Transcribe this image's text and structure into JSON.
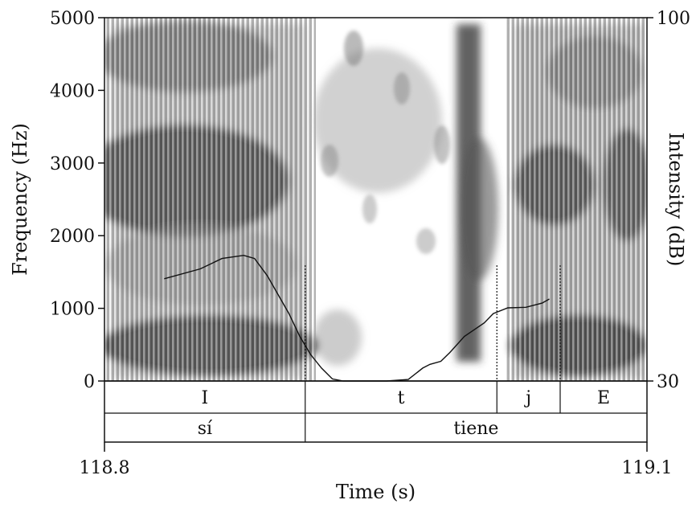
{
  "chart_data": {
    "type": "spectrogram",
    "xlabel": "Time (s)",
    "ylabel": "Frequency (Hz)",
    "y2label": "Intensity (dB)",
    "xlim": [
      118.8,
      119.1
    ],
    "x_tick_labels": [
      "118.8",
      "119.1"
    ],
    "ylim": [
      0,
      5000
    ],
    "y_ticks": [
      0,
      1000,
      2000,
      3000,
      4000,
      5000
    ],
    "y_tick_labels": [
      "0",
      "1000",
      "2000",
      "3000",
      "4000",
      "5000"
    ],
    "y2lim": [
      30,
      100
    ],
    "y2_ticks": [
      30,
      100
    ],
    "y2_tick_labels": [
      "30",
      "100"
    ],
    "intensity_contour": {
      "x": [
        118.833,
        118.853,
        118.865,
        118.877,
        118.883,
        118.89,
        118.902,
        118.908,
        118.914,
        118.92,
        118.926,
        118.932,
        118.938,
        118.944,
        118.956,
        118.968,
        118.976,
        118.98,
        118.986,
        118.991,
        118.999,
        119.01,
        119.015,
        119.023,
        119.033,
        119.042,
        119.046
      ],
      "y": [
        49.7,
        51.6,
        53.6,
        54.2,
        53.6,
        50.3,
        43.0,
        38.6,
        35.1,
        32.5,
        30.4,
        30.0,
        30.0,
        30.0,
        30.0,
        30.3,
        32.5,
        33.2,
        33.8,
        35.5,
        38.6,
        41.2,
        43.0,
        44.1,
        44.2,
        45.0,
        45.8
      ]
    },
    "boundaries": [
      118.911,
      119.017,
      119.052
    ],
    "tiers": [
      {
        "intervals": [
          {
            "label": "I",
            "start": 118.8,
            "end": 118.911
          },
          {
            "label": "t",
            "start": 118.911,
            "end": 119.017
          },
          {
            "label": "j",
            "start": 119.017,
            "end": 119.052
          },
          {
            "label": "E",
            "start": 119.052,
            "end": 119.1
          }
        ]
      },
      {
        "intervals": [
          {
            "label": "sí",
            "start": 118.8,
            "end": 118.911
          },
          {
            "label": "tiene",
            "start": 118.911,
            "end": 119.1
          }
        ]
      }
    ],
    "colors": {
      "ink": "#111111",
      "spectrogram_dark": "#141414",
      "background": "#ffffff"
    }
  }
}
